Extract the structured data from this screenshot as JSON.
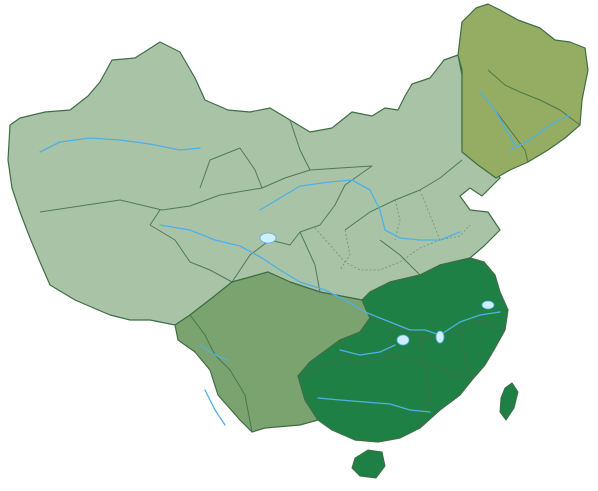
{
  "map": {
    "regions": [
      {
        "id": "main",
        "color": "#a9c3a6"
      },
      {
        "id": "northeast",
        "color": "#95ad63"
      },
      {
        "id": "southwest",
        "color": "#7aa36f"
      },
      {
        "id": "southeast",
        "color": "#1f8046"
      }
    ],
    "colors": {
      "river": "#4fb0e6",
      "border": "#3f6e45",
      "background": "#ffffff"
    }
  }
}
